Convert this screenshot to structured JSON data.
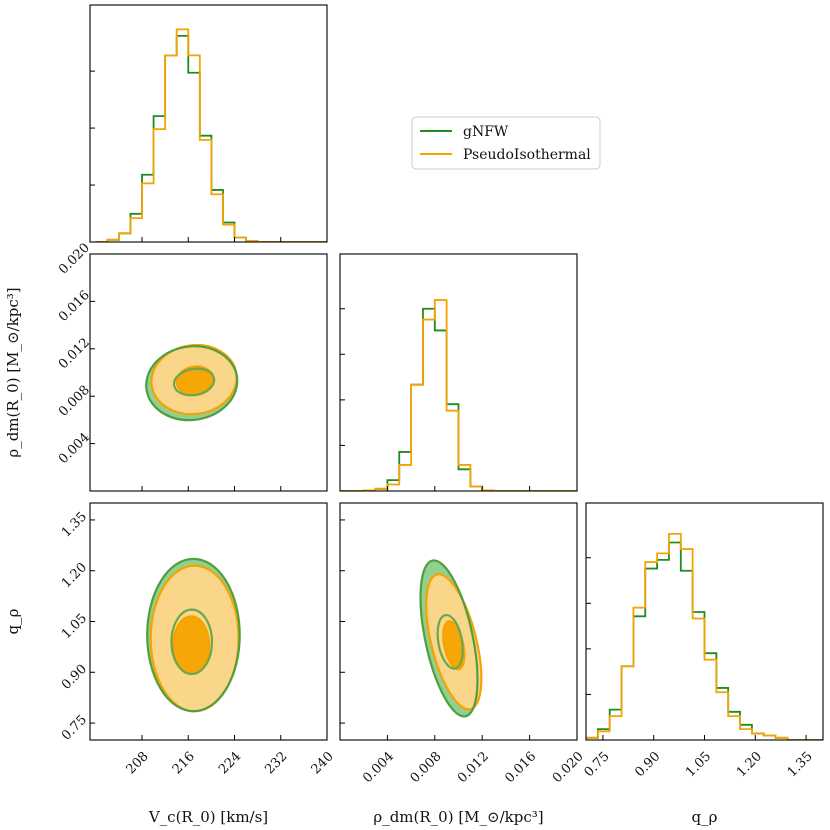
{
  "chart_data": {
    "type": "corner",
    "series": [
      {
        "name": "gNFW",
        "color": "#1e8c1e",
        "fill": "#8ccd8c"
      },
      {
        "name": "PseudoIsothermal",
        "color": "#f5a300",
        "fill": "#ffd68a"
      }
    ],
    "parameters": [
      {
        "key": "vc",
        "label": "V_c(R_0) [km/s]",
        "ticks": [
          "208",
          "216",
          "224",
          "232",
          "240"
        ],
        "tick_values": [
          208,
          216,
          224,
          232,
          240
        ],
        "range": [
          199,
          240
        ]
      },
      {
        "key": "rho",
        "label": "ρ_dm(R_0) [M_⊙/kpc³]",
        "ticks": [
          "0.004",
          "0.008",
          "0.012",
          "0.016",
          "0.020"
        ],
        "tick_values": [
          0.004,
          0.008,
          0.012,
          0.016,
          0.02
        ],
        "range": [
          0.0,
          0.02
        ]
      },
      {
        "key": "q",
        "label": "q_ρ",
        "ticks": [
          "0.75",
          "0.90",
          "1.05",
          "1.20",
          "1.35"
        ],
        "tick_values": [
          0.75,
          0.9,
          1.05,
          1.2,
          1.35
        ],
        "range": [
          0.7,
          1.4
        ]
      }
    ],
    "histograms": {
      "vc": {
        "bin_edges": [
          200,
          202,
          204,
          206,
          208,
          210,
          212,
          214,
          216,
          218,
          220,
          222,
          224,
          226,
          228,
          230,
          232,
          234,
          236,
          238,
          240
        ],
        "gNFW": [
          0.0,
          0.01,
          0.04,
          0.13,
          0.31,
          0.58,
          0.86,
          0.95,
          0.78,
          0.49,
          0.24,
          0.09,
          0.02,
          0.004,
          0,
          0,
          0,
          0,
          0,
          0
        ],
        "PseudoIsothermal": [
          0.0,
          0.01,
          0.04,
          0.11,
          0.27,
          0.52,
          0.86,
          0.98,
          0.86,
          0.47,
          0.22,
          0.08,
          0.02,
          0.004,
          0,
          0,
          0,
          0,
          0,
          0
        ]
      },
      "rho": {
        "bin_edges": [
          0.0,
          0.001,
          0.002,
          0.003,
          0.004,
          0.005,
          0.006,
          0.007,
          0.008,
          0.009,
          0.01,
          0.011,
          0.012,
          0.013,
          0.014,
          0.015,
          0.016,
          0.017,
          0.018,
          0.019,
          0.02
        ],
        "gNFW": [
          0,
          0,
          0.003,
          0.01,
          0.05,
          0.18,
          0.49,
          0.84,
          0.74,
          0.4,
          0.1,
          0.02,
          0.003,
          0,
          0,
          0,
          0,
          0,
          0,
          0
        ],
        "PseudoIsothermal": [
          0,
          0,
          0.003,
          0.01,
          0.03,
          0.12,
          0.49,
          0.79,
          0.88,
          0.37,
          0.12,
          0.02,
          0.003,
          0,
          0,
          0,
          0,
          0,
          0,
          0
        ]
      },
      "q": {
        "bin_edges": [
          0.7,
          0.735,
          0.77,
          0.805,
          0.84,
          0.875,
          0.91,
          0.945,
          0.98,
          1.015,
          1.05,
          1.085,
          1.12,
          1.155,
          1.19,
          1.225,
          1.26,
          1.295,
          1.33,
          1.365,
          1.4
        ],
        "gNFW": [
          0.01,
          0.05,
          0.14,
          0.34,
          0.57,
          0.79,
          0.83,
          0.91,
          0.78,
          0.59,
          0.4,
          0.24,
          0.13,
          0.07,
          0.03,
          0.02,
          0.01,
          0,
          0,
          0
        ],
        "PseudoIsothermal": [
          0.01,
          0.04,
          0.11,
          0.34,
          0.61,
          0.82,
          0.86,
          0.95,
          0.88,
          0.56,
          0.37,
          0.22,
          0.11,
          0.05,
          0.03,
          0.02,
          0.01,
          0,
          0,
          0
        ]
      }
    },
    "contours": {
      "vc_rho": {
        "gNFW": {
          "outer": {
            "cx": 216.6,
            "cy": 0.0091,
            "rx": 7.9,
            "ry": 0.0031,
            "rot": 8
          },
          "inner": {
            "cx": 217.0,
            "cy": 0.0092,
            "rx": 3.5,
            "ry": 0.0011,
            "rot": 10
          }
        },
        "PseudoIsothermal": {
          "outer": {
            "cx": 217.0,
            "cy": 0.0094,
            "rx": 7.4,
            "ry": 0.0029,
            "rot": 8
          },
          "inner": {
            "cx": 217.2,
            "cy": 0.0093,
            "rx": 3.2,
            "ry": 0.0012,
            "rot": 8
          }
        }
      },
      "vc_q": {
        "gNFW": {
          "outer": {
            "cx": 216.9,
            "cy": 1.01,
            "rx": 8.0,
            "ry": 0.225,
            "rot": 0
          },
          "inner": {
            "cx": 216.6,
            "cy": 0.99,
            "rx": 3.5,
            "ry": 0.095,
            "rot": 0
          }
        },
        "PseudoIsothermal": {
          "outer": {
            "cx": 217.1,
            "cy": 1.0,
            "rx": 7.6,
            "ry": 0.215,
            "rot": 0
          },
          "inner": {
            "cx": 216.5,
            "cy": 0.98,
            "rx": 3.1,
            "ry": 0.085,
            "rot": 0
          }
        }
      },
      "rho_q": {
        "gNFW": {
          "outer": {
            "cx": 0.0092,
            "cy": 1.0,
            "rx": 0.002,
            "ry": 0.235,
            "rot": 12
          },
          "inner": {
            "cx": 0.0093,
            "cy": 0.99,
            "rx": 0.001,
            "ry": 0.08,
            "rot": 10
          }
        },
        "PseudoIsothermal": {
          "outer": {
            "cx": 0.0096,
            "cy": 0.99,
            "rx": 0.0019,
            "ry": 0.205,
            "rot": 14
          },
          "inner": {
            "cx": 0.0096,
            "cy": 0.98,
            "rx": 0.0008,
            "ry": 0.072,
            "rot": 12
          }
        }
      }
    },
    "legend": {
      "entries": [
        "gNFW",
        "PseudoIsothermal"
      ],
      "placement": "top-right"
    },
    "y_axis_labels": {
      "rho_row": "ρ_dm(R_0) [M_⊙/kpc³]",
      "q_row": "q_ρ"
    }
  }
}
